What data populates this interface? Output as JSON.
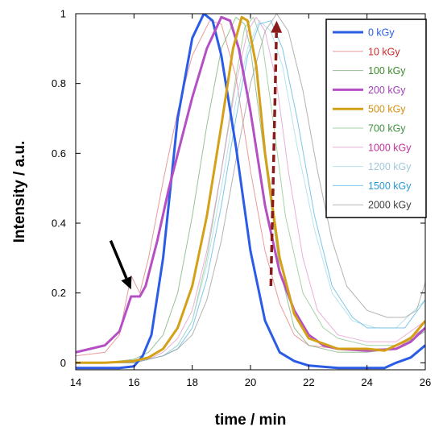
{
  "chart_data": {
    "type": "line",
    "xlabel": "time / min",
    "ylabel": "Intensity / a.u.",
    "xlim": [
      14,
      26
    ],
    "ylim": [
      -0.02,
      1.0
    ],
    "x_ticks": [
      14,
      16,
      18,
      20,
      22,
      24,
      26
    ],
    "y_ticks": [
      0,
      0.2,
      0.4,
      0.6,
      0.8,
      1
    ],
    "x_tick_labels": [
      "14",
      "16",
      "18",
      "20",
      "22",
      "24",
      "26"
    ],
    "y_tick_labels": [
      "0",
      "0.2",
      "0.4",
      "0.6",
      "0.8",
      "1"
    ],
    "grid": false,
    "legend_position": "top-right",
    "annotations": [
      {
        "type": "arrow",
        "color": "#000000",
        "style": "solid",
        "from": [
          15.2,
          0.35
        ],
        "to": [
          15.9,
          0.21
        ]
      },
      {
        "type": "arrow",
        "color": "#8b1a1a",
        "style": "dashed",
        "from": [
          20.7,
          0.22
        ],
        "to": [
          20.9,
          0.98
        ]
      }
    ],
    "series": [
      {
        "name": "0 kGy",
        "color": "#2b5ce6",
        "text_color": "#2b5ce6",
        "width": 3,
        "opacity": 1,
        "points": [
          [
            14,
            -0.015
          ],
          [
            15,
            -0.015
          ],
          [
            15.5,
            -0.015
          ],
          [
            16,
            -0.01
          ],
          [
            16.3,
            0.02
          ],
          [
            16.6,
            0.08
          ],
          [
            17,
            0.3
          ],
          [
            17.5,
            0.7
          ],
          [
            18,
            0.93
          ],
          [
            18.4,
            1.0
          ],
          [
            18.7,
            0.98
          ],
          [
            19,
            0.88
          ],
          [
            19.5,
            0.62
          ],
          [
            20,
            0.32
          ],
          [
            20.5,
            0.12
          ],
          [
            21,
            0.03
          ],
          [
            21.5,
            0.005
          ],
          [
            22,
            -0.008
          ],
          [
            23,
            -0.015
          ],
          [
            24,
            -0.015
          ],
          [
            24.6,
            -0.015
          ],
          [
            25,
            0.0
          ],
          [
            25.5,
            0.015
          ],
          [
            26,
            0.05
          ]
        ]
      },
      {
        "name": "10 kGy",
        "color": "#e07070",
        "text_color": "#cc2a2a",
        "width": 1,
        "opacity": 0.7,
        "points": [
          [
            14,
            0.02
          ],
          [
            15,
            0.03
          ],
          [
            15.5,
            0.08
          ],
          [
            15.9,
            0.25
          ],
          [
            16.2,
            0.2
          ],
          [
            16.5,
            0.3
          ],
          [
            17,
            0.52
          ],
          [
            17.5,
            0.72
          ],
          [
            18,
            0.88
          ],
          [
            18.6,
            0.98
          ],
          [
            19,
            0.97
          ],
          [
            19.5,
            0.82
          ],
          [
            20,
            0.55
          ],
          [
            20.5,
            0.32
          ],
          [
            21,
            0.17
          ],
          [
            21.5,
            0.08
          ],
          [
            22,
            0.05
          ],
          [
            23,
            0.04
          ],
          [
            24,
            0.04
          ],
          [
            25,
            0.04
          ],
          [
            26,
            0.1
          ]
        ]
      },
      {
        "name": "100 kGy",
        "color": "#6aa86a",
        "text_color": "#3a8a2a",
        "width": 1,
        "opacity": 0.7,
        "points": [
          [
            14,
            0.0
          ],
          [
            15,
            0.0
          ],
          [
            16,
            0.01
          ],
          [
            16.5,
            0.03
          ],
          [
            17,
            0.08
          ],
          [
            17.5,
            0.2
          ],
          [
            18,
            0.42
          ],
          [
            18.5,
            0.68
          ],
          [
            19,
            0.9
          ],
          [
            19.5,
            0.99
          ],
          [
            19.8,
            0.97
          ],
          [
            20,
            0.9
          ],
          [
            20.5,
            0.58
          ],
          [
            21,
            0.27
          ],
          [
            21.5,
            0.1
          ],
          [
            22,
            0.05
          ],
          [
            23,
            0.03
          ],
          [
            24,
            0.03
          ],
          [
            25,
            0.04
          ],
          [
            26,
            0.09
          ]
        ]
      },
      {
        "name": "200 kGy",
        "color": "#b44fc4",
        "text_color": "#a040b8",
        "width": 3,
        "opacity": 1,
        "points": [
          [
            14,
            0.03
          ],
          [
            14.5,
            0.04
          ],
          [
            15,
            0.05
          ],
          [
            15.5,
            0.09
          ],
          [
            15.9,
            0.19
          ],
          [
            16.2,
            0.19
          ],
          [
            16.4,
            0.22
          ],
          [
            16.8,
            0.35
          ],
          [
            17.2,
            0.5
          ],
          [
            17.6,
            0.63
          ],
          [
            18,
            0.76
          ],
          [
            18.5,
            0.9
          ],
          [
            19,
            0.99
          ],
          [
            19.3,
            0.98
          ],
          [
            19.6,
            0.9
          ],
          [
            20,
            0.72
          ],
          [
            20.5,
            0.45
          ],
          [
            21,
            0.26
          ],
          [
            21.5,
            0.15
          ],
          [
            22,
            0.08
          ],
          [
            22.5,
            0.05
          ],
          [
            23,
            0.04
          ],
          [
            24,
            0.035
          ],
          [
            25,
            0.04
          ],
          [
            25.5,
            0.06
          ],
          [
            26,
            0.1
          ]
        ]
      },
      {
        "name": "500 kGy",
        "color": "#d4a017",
        "text_color": "#d49010",
        "width": 3,
        "opacity": 1,
        "points": [
          [
            14,
            0.0
          ],
          [
            15,
            0.0
          ],
          [
            16,
            0.005
          ],
          [
            16.5,
            0.015
          ],
          [
            17,
            0.04
          ],
          [
            17.5,
            0.1
          ],
          [
            18,
            0.22
          ],
          [
            18.5,
            0.42
          ],
          [
            19,
            0.68
          ],
          [
            19.4,
            0.9
          ],
          [
            19.7,
            0.99
          ],
          [
            19.9,
            0.98
          ],
          [
            20.2,
            0.85
          ],
          [
            20.5,
            0.6
          ],
          [
            21,
            0.3
          ],
          [
            21.5,
            0.14
          ],
          [
            22,
            0.07
          ],
          [
            23,
            0.04
          ],
          [
            24,
            0.04
          ],
          [
            24.6,
            0.035
          ],
          [
            25,
            0.05
          ],
          [
            25.5,
            0.07
          ],
          [
            26,
            0.12
          ]
        ]
      },
      {
        "name": "700 kGy",
        "color": "#7fbf7f",
        "text_color": "#3f8f3f",
        "width": 1,
        "opacity": 0.7,
        "points": [
          [
            14,
            0.0
          ],
          [
            16,
            0.0
          ],
          [
            17,
            0.02
          ],
          [
            17.5,
            0.05
          ],
          [
            18,
            0.12
          ],
          [
            18.5,
            0.3
          ],
          [
            19,
            0.55
          ],
          [
            19.5,
            0.82
          ],
          [
            19.8,
            0.96
          ],
          [
            20.1,
            0.99
          ],
          [
            20.4,
            0.92
          ],
          [
            20.8,
            0.68
          ],
          [
            21.2,
            0.42
          ],
          [
            21.8,
            0.2
          ],
          [
            22.5,
            0.1
          ],
          [
            23,
            0.07
          ],
          [
            24,
            0.05
          ],
          [
            25,
            0.05
          ],
          [
            26,
            0.1
          ]
        ]
      },
      {
        "name": "1000 kGy",
        "color": "#e08fc8",
        "text_color": "#c0309a",
        "width": 1,
        "opacity": 0.7,
        "points": [
          [
            14,
            0.0
          ],
          [
            16,
            0.0
          ],
          [
            16.5,
            0.01
          ],
          [
            17,
            0.03
          ],
          [
            17.5,
            0.07
          ],
          [
            18,
            0.15
          ],
          [
            18.5,
            0.32
          ],
          [
            19,
            0.55
          ],
          [
            19.5,
            0.8
          ],
          [
            19.9,
            0.95
          ],
          [
            20.2,
            0.99
          ],
          [
            20.5,
            0.95
          ],
          [
            20.9,
            0.8
          ],
          [
            21.3,
            0.55
          ],
          [
            21.8,
            0.3
          ],
          [
            22.3,
            0.15
          ],
          [
            23,
            0.08
          ],
          [
            24,
            0.06
          ],
          [
            25,
            0.06
          ],
          [
            26,
            0.12
          ]
        ]
      },
      {
        "name": "1200 kGy",
        "color": "#a8dce8",
        "text_color": "#a0c8d8",
        "width": 1,
        "opacity": 0.8,
        "points": [
          [
            14,
            0.0
          ],
          [
            16,
            0.0
          ],
          [
            17,
            0.02
          ],
          [
            17.5,
            0.05
          ],
          [
            18,
            0.12
          ],
          [
            18.5,
            0.28
          ],
          [
            19,
            0.5
          ],
          [
            19.5,
            0.75
          ],
          [
            19.9,
            0.9
          ],
          [
            20.3,
            0.98
          ],
          [
            20.7,
            0.95
          ],
          [
            21.1,
            0.85
          ],
          [
            21.6,
            0.62
          ],
          [
            22.2,
            0.38
          ],
          [
            22.8,
            0.2
          ],
          [
            23.5,
            0.12
          ],
          [
            24.3,
            0.1
          ],
          [
            25,
            0.1
          ],
          [
            26,
            0.18
          ]
        ]
      },
      {
        "name": "1500 kGy",
        "color": "#5fb8e0",
        "text_color": "#2a9ad4",
        "width": 1,
        "opacity": 0.8,
        "points": [
          [
            14,
            0.0
          ],
          [
            16,
            0.0
          ],
          [
            17,
            0.02
          ],
          [
            17.5,
            0.04
          ],
          [
            18,
            0.1
          ],
          [
            18.5,
            0.24
          ],
          [
            19,
            0.45
          ],
          [
            19.5,
            0.7
          ],
          [
            19.9,
            0.88
          ],
          [
            20.3,
            0.97
          ],
          [
            20.7,
            0.98
          ],
          [
            21.1,
            0.9
          ],
          [
            21.6,
            0.7
          ],
          [
            22.2,
            0.42
          ],
          [
            22.8,
            0.22
          ],
          [
            23.5,
            0.13
          ],
          [
            24,
            0.1
          ],
          [
            24.7,
            0.1
          ],
          [
            25.3,
            0.1
          ],
          [
            26,
            0.18
          ]
        ]
      },
      {
        "name": "2000 kGy",
        "color": "#a0a0a0",
        "text_color": "#404040",
        "width": 1,
        "opacity": 0.8,
        "points": [
          [
            14,
            0.0
          ],
          [
            16,
            0.0
          ],
          [
            17,
            0.02
          ],
          [
            17.5,
            0.04
          ],
          [
            18,
            0.08
          ],
          [
            18.5,
            0.18
          ],
          [
            19,
            0.35
          ],
          [
            19.5,
            0.58
          ],
          [
            20,
            0.8
          ],
          [
            20.5,
            0.95
          ],
          [
            20.9,
            1.0
          ],
          [
            21.3,
            0.95
          ],
          [
            21.8,
            0.78
          ],
          [
            22.3,
            0.55
          ],
          [
            22.8,
            0.35
          ],
          [
            23.3,
            0.22
          ],
          [
            24,
            0.15
          ],
          [
            24.7,
            0.13
          ],
          [
            25.3,
            0.13
          ],
          [
            25.7,
            0.15
          ],
          [
            26,
            0.23
          ]
        ]
      }
    ]
  }
}
